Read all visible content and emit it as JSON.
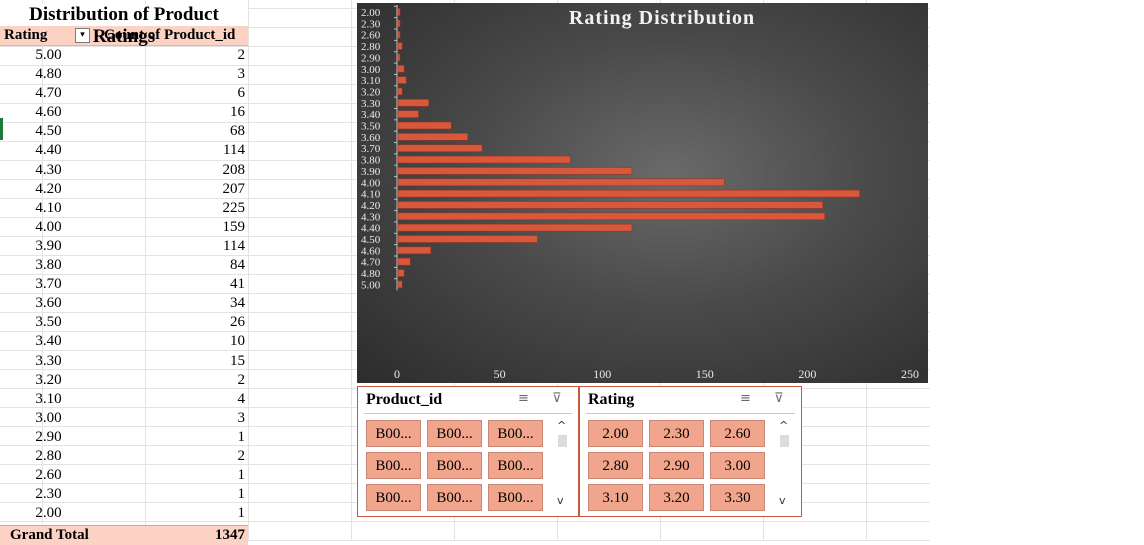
{
  "pivot": {
    "title": "Distribution of Product Ratings",
    "col_rating": "Rating",
    "col_count": "Count of Product_id",
    "rows": [
      {
        "rating": "5.00",
        "count": "2"
      },
      {
        "rating": "4.80",
        "count": "3"
      },
      {
        "rating": "4.70",
        "count": "6"
      },
      {
        "rating": "4.60",
        "count": "16"
      },
      {
        "rating": "4.50",
        "count": "68"
      },
      {
        "rating": "4.40",
        "count": "114"
      },
      {
        "rating": "4.30",
        "count": "208"
      },
      {
        "rating": "4.20",
        "count": "207"
      },
      {
        "rating": "4.10",
        "count": "225"
      },
      {
        "rating": "4.00",
        "count": "159"
      },
      {
        "rating": "3.90",
        "count": "114"
      },
      {
        "rating": "3.80",
        "count": "84"
      },
      {
        "rating": "3.70",
        "count": "41"
      },
      {
        "rating": "3.60",
        "count": "34"
      },
      {
        "rating": "3.50",
        "count": "26"
      },
      {
        "rating": "3.40",
        "count": "10"
      },
      {
        "rating": "3.30",
        "count": "15"
      },
      {
        "rating": "3.20",
        "count": "2"
      },
      {
        "rating": "3.10",
        "count": "4"
      },
      {
        "rating": "3.00",
        "count": "3"
      },
      {
        "rating": "2.90",
        "count": "1"
      },
      {
        "rating": "2.80",
        "count": "2"
      },
      {
        "rating": "2.60",
        "count": "1"
      },
      {
        "rating": "2.30",
        "count": "1"
      },
      {
        "rating": "2.00",
        "count": "1"
      }
    ],
    "total_label": "Grand Total",
    "total_value": "1347"
  },
  "chart_data": {
    "type": "bar",
    "orientation": "horizontal",
    "title": "Rating Distribution",
    "categories": [
      "2.00",
      "2.30",
      "2.60",
      "2.80",
      "2.90",
      "3.00",
      "3.10",
      "3.20",
      "3.30",
      "3.40",
      "3.50",
      "3.60",
      "3.70",
      "3.80",
      "3.90",
      "4.00",
      "4.10",
      "4.20",
      "4.30",
      "4.40",
      "4.50",
      "4.60",
      "4.70",
      "4.80",
      "5.00"
    ],
    "values": [
      1,
      1,
      1,
      2,
      1,
      3,
      4,
      2,
      15,
      10,
      26,
      34,
      41,
      84,
      114,
      159,
      225,
      207,
      208,
      114,
      68,
      16,
      6,
      3,
      2
    ],
    "xticks": [
      "0",
      "50",
      "100",
      "150",
      "200",
      "250"
    ],
    "xlim": [
      0,
      250
    ],
    "grid": false,
    "bar_color": "#d9583b",
    "background": "#3a3a3a"
  },
  "slicers": {
    "product": {
      "title": "Product_id",
      "items": [
        "B00...",
        "B00...",
        "B00...",
        "B00...",
        "B00...",
        "B00...",
        "B00...",
        "B00...",
        "B00..."
      ]
    },
    "rating": {
      "title": "Rating",
      "items": [
        "2.00",
        "2.30",
        "2.60",
        "2.80",
        "2.90",
        "3.00",
        "3.10",
        "3.20",
        "3.30"
      ]
    },
    "icons": {
      "multiselect": "≡",
      "clear_filter": "⊽",
      "scroll_up": "^",
      "scroll_down": "v"
    }
  }
}
